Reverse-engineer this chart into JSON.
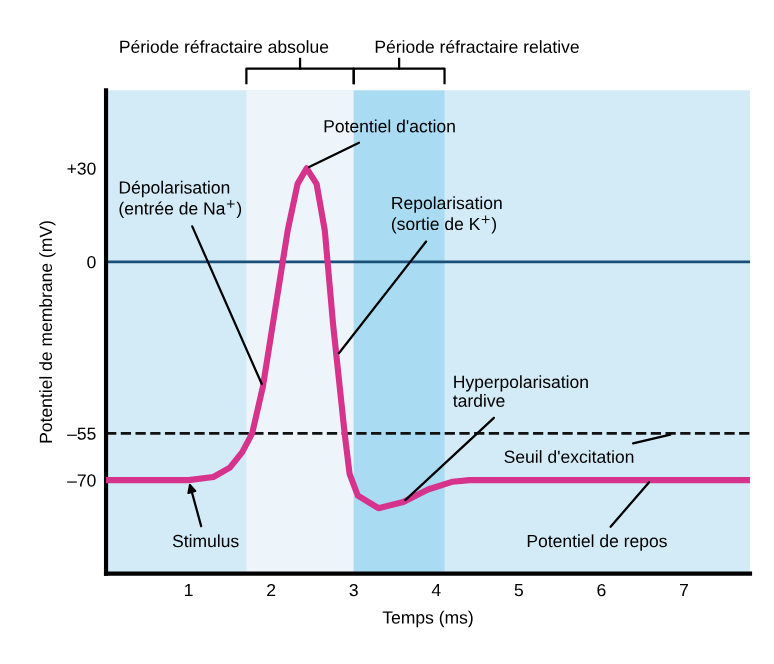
{
  "chart_data": {
    "type": "line",
    "xlabel": "Temps (ms)",
    "ylabel": "Potentiel de membrane (mV)",
    "xlim": [
      0,
      7.8
    ],
    "xticks": [
      1,
      2,
      3,
      4,
      5,
      6,
      7
    ],
    "ylim": [
      -100,
      55
    ],
    "yticks": [
      {
        "value": 30,
        "label": "+30"
      },
      0,
      {
        "value": -55,
        "label": "–55"
      },
      {
        "value": -70,
        "label": "–70"
      }
    ],
    "grid": false,
    "legend": false,
    "marker": "none",
    "line_style": "solid",
    "series": [
      {
        "color": "#d6338c",
        "x": [
          0,
          1.0,
          1.3,
          1.5,
          1.65,
          1.77,
          1.9,
          2.05,
          2.2,
          2.32,
          2.43,
          2.55,
          2.65,
          2.75,
          2.85,
          2.89,
          2.95,
          3.05,
          3.3,
          3.6,
          3.9,
          4.2,
          4.4,
          7.8
        ],
        "values": [
          -70,
          -70,
          -69,
          -66,
          -61,
          -55,
          -40,
          -15,
          10,
          25,
          30,
          25,
          10,
          -20,
          -45,
          -55,
          -68,
          -75,
          -79,
          -77,
          -73,
          -70.5,
          -70,
          -70
        ]
      }
    ],
    "bands": [
      {
        "axis": "x",
        "from": 1.7,
        "to": 3.0,
        "label": "Période réfractaire absolue",
        "color": "#eef5fa"
      },
      {
        "axis": "x",
        "from": 3.0,
        "to": 4.1,
        "label": "Période réfractaire relative",
        "color": "#a9dcf3"
      }
    ],
    "ref_lines": [
      {
        "axis": "y",
        "value": 0,
        "color": "#1a4f7a",
        "line_style": "solid"
      },
      {
        "axis": "y",
        "value": -55,
        "label": "Seuil d'excitation",
        "color": "#111111",
        "line_style": "dashed"
      }
    ],
    "annotations": [
      {
        "text": "Dépolarisation\n(entrée de Na$^{+}$)",
        "x": 1.9,
        "y": -40
      },
      {
        "text": "Potentiel d'action",
        "x": 2.43,
        "y": 30
      },
      {
        "text": "Repolarisation\n(sortie de K$^{+}$)",
        "x": 2.8,
        "y": -30
      },
      {
        "text": "Hyperpolarisation\ntardive",
        "x": 3.6,
        "y": -77
      },
      {
        "text": "Stimulus",
        "x": 1.0,
        "y": -70
      },
      {
        "text": "Potentiel de repos",
        "x": 6.6,
        "y": -70
      }
    ]
  }
}
